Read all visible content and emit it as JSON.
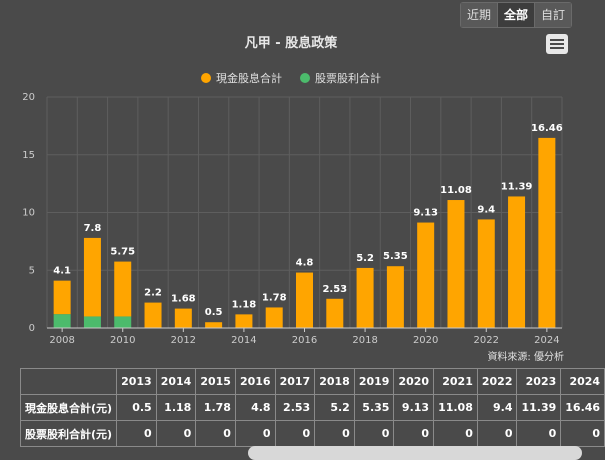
{
  "range_buttons": [
    "近期",
    "全部",
    "自訂"
  ],
  "range_active": 1,
  "source_text": "資料來源: 優分析",
  "colors": {
    "cash": "#FFA500",
    "stock": "#4CBB6C",
    "grid": "#5e5e5e",
    "axis": "#cccccc"
  },
  "menu_icon": "hamburger-menu-icon",
  "table": {
    "years": [
      "2013",
      "2014",
      "2015",
      "2016",
      "2017",
      "2018",
      "2019",
      "2020",
      "2021",
      "2022",
      "2023",
      "2024"
    ],
    "rows": [
      {
        "label": "現金股息合計(元)",
        "values": [
          "0.5",
          "1.18",
          "1.78",
          "4.8",
          "2.53",
          "5.2",
          "5.35",
          "9.13",
          "11.08",
          "9.4",
          "11.39",
          "16.46"
        ]
      },
      {
        "label": "股票股利合計(元)",
        "values": [
          "0",
          "0",
          "0",
          "0",
          "0",
          "0",
          "0",
          "0",
          "0",
          "0",
          "0",
          "0"
        ]
      }
    ]
  },
  "chart_data": {
    "type": "bar",
    "stacked": true,
    "title": "凡甲 - 股息政策",
    "legend_placement": "top-center",
    "categories": [
      2008,
      2009,
      2010,
      2011,
      2012,
      2013,
      2014,
      2015,
      2016,
      2017,
      2018,
      2019,
      2020,
      2021,
      2022,
      2023,
      2024
    ],
    "series": [
      {
        "name": "現金股息合計",
        "color": "#FFA500",
        "values": [
          2.9,
          6.8,
          4.75,
          2.2,
          1.68,
          0.5,
          1.18,
          1.78,
          4.8,
          2.53,
          5.2,
          5.35,
          9.13,
          11.08,
          9.4,
          11.39,
          16.46
        ]
      },
      {
        "name": "股票股利合計",
        "color": "#4CBB6C",
        "values": [
          1.2,
          1.0,
          1.0,
          0,
          0,
          0,
          0,
          0,
          0,
          0,
          0,
          0,
          0,
          0,
          0,
          0,
          0
        ]
      }
    ],
    "data_labels": [
      "4.1",
      "7.8",
      "5.75",
      "2.2",
      "1.68",
      "0.5",
      "1.18",
      "1.78",
      "4.8",
      "2.53",
      "5.2",
      "5.35",
      "9.13",
      "11.08",
      "9.4",
      "11.39",
      "16.46"
    ],
    "x_tick_labels": [
      "2008",
      "2010",
      "2012",
      "2014",
      "2016",
      "2018",
      "2020",
      "2022",
      "2024"
    ],
    "y_ticks": [
      0,
      5,
      10,
      15,
      20
    ],
    "ylim": [
      0,
      20
    ],
    "grid": true
  }
}
